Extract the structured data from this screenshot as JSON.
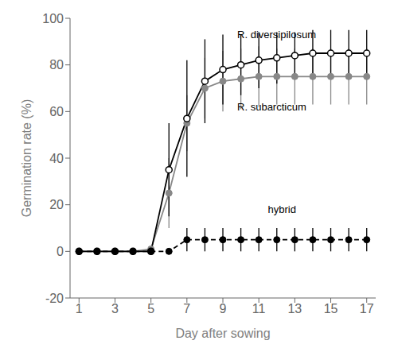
{
  "chart_data": {
    "type": "line",
    "xlabel": "Day after sowing",
    "ylabel": "Germination rate (%)",
    "x": [
      1,
      2,
      3,
      4,
      5,
      6,
      7,
      8,
      9,
      10,
      11,
      12,
      13,
      14,
      15,
      16,
      17
    ],
    "series": [
      {
        "name": "R. subarcticum",
        "color": "#888888",
        "marker": "filled",
        "line_style": "solid",
        "values": [
          0,
          0,
          0,
          0,
          1,
          25,
          55,
          70,
          73,
          74,
          75,
          75,
          75,
          75,
          75,
          75,
          75
        ],
        "errors": [
          0.5,
          0.5,
          0.5,
          0.5,
          0.5,
          15,
          12,
          13,
          13,
          13,
          13,
          12,
          12,
          12,
          12,
          12,
          12
        ]
      },
      {
        "name": "R. diversipilosum",
        "color": "#000000",
        "marker": "open",
        "line_style": "solid",
        "values": [
          0,
          0,
          0,
          0,
          0,
          35,
          57,
          73,
          78,
          80,
          82,
          83,
          84,
          85,
          85,
          85,
          85
        ],
        "errors": [
          0.5,
          0.5,
          0.5,
          0.5,
          0.5,
          20,
          25,
          18,
          15,
          13,
          12,
          11,
          10,
          10,
          10,
          10,
          10
        ]
      },
      {
        "name": "hybrid",
        "color": "#000000",
        "marker": "filled",
        "line_style": "dashed",
        "values": [
          0,
          0,
          0,
          0,
          0,
          0,
          5,
          5,
          5,
          5,
          5,
          5,
          5,
          5,
          5,
          5,
          5
        ],
        "errors": [
          0,
          0,
          0,
          0,
          0,
          0,
          5,
          5,
          5,
          5,
          5,
          5,
          5,
          5,
          5,
          5,
          5
        ]
      }
    ],
    "xlim": [
      0.5,
      17.5
    ],
    "ylim": [
      -20,
      100
    ],
    "xticks": [
      1,
      3,
      5,
      7,
      9,
      11,
      13,
      15,
      17
    ],
    "yticks": [
      -20,
      0,
      20,
      40,
      60,
      80,
      100
    ],
    "annotations": [
      {
        "text": "R. diversipilosum",
        "x": 9.8,
        "y": 93
      },
      {
        "text": "R. subarcticum",
        "x": 9.8,
        "y": 62
      },
      {
        "text": "hybrid",
        "x": 11.5,
        "y": 18
      }
    ]
  }
}
